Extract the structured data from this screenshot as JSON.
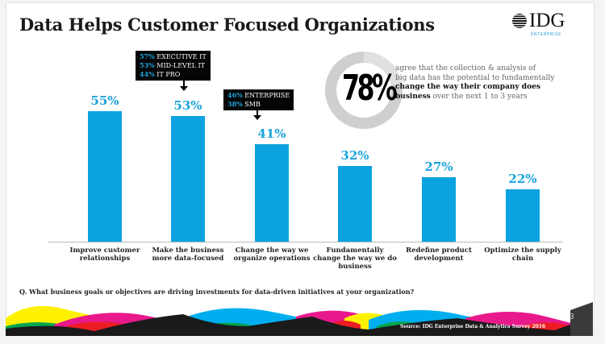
{
  "title": "Data Helps Customer Focused Organizations",
  "logo": {
    "text": "IDG",
    "subtext": "ENTERPRISE"
  },
  "chart_data": {
    "type": "bar",
    "categories": [
      [
        "Improve customer",
        "relationships"
      ],
      [
        "Make the business",
        "more data-focused"
      ],
      [
        "Change the way we",
        "organize operations"
      ],
      [
        "Fundamentally",
        "change the way we do",
        "business"
      ],
      [
        "Redefine product",
        "development"
      ],
      [
        "Optimize the supply",
        "chain"
      ]
    ],
    "values": [
      55,
      53,
      41,
      32,
      27,
      22
    ],
    "value_labels": [
      "55%",
      "53%",
      "41%",
      "32%",
      "27%",
      "22%"
    ],
    "ylim": [
      0,
      60
    ],
    "bar_color": "#0aa2df",
    "grid": false,
    "annotations": [
      {
        "category_index": 1,
        "lines": [
          {
            "pct": "57%",
            "label": "EXECUTIVE IT"
          },
          {
            "pct": "53%",
            "label": "MID-LEVEL IT"
          },
          {
            "pct": "44%",
            "label": "IT PRO"
          }
        ]
      },
      {
        "category_index": 2,
        "lines": [
          {
            "pct": "46%",
            "label": "ENTERPRISE"
          },
          {
            "pct": "38%",
            "label": "SMB"
          }
        ]
      }
    ]
  },
  "highlight": {
    "value": "78%",
    "fraction": 0.78,
    "line1": "agree that the collection & analysis of",
    "line2": "big data has the potential to fundamentally",
    "line3_bold": "change the way their  company does",
    "line4_bold": "business",
    "line4_rest": " over the next 1 to 3 years"
  },
  "question": "Q. What business goals or objectives are driving investments for data-driven initiatives at your organization?",
  "source": "Source: IDG Enterprise Data & Analytics Survey 2016",
  "page_number": "3"
}
